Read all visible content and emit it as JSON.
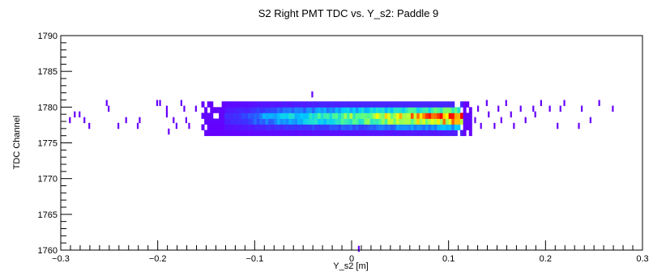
{
  "chart_data": {
    "type": "heatmap",
    "title": "S2 Right PMT TDC vs. Y_s2: Paddle 9",
    "xlabel": "Y_s2 [m]",
    "ylabel": "TDC Channel",
    "xlim": [
      -0.3,
      0.3
    ],
    "ylim": [
      1760,
      1790
    ],
    "x_ticks": [
      -0.3,
      -0.2,
      -0.1,
      0,
      0.1,
      0.2,
      0.3
    ],
    "x_tick_labels": [
      "−0.3",
      "−0.2",
      "−0.1",
      "0",
      "0.1",
      "0.2",
      "0.3"
    ],
    "y_ticks": [
      1760,
      1765,
      1770,
      1775,
      1780,
      1785,
      1790
    ],
    "y_tick_labels": [
      "1760",
      "1765",
      "1770",
      "1775",
      "1780",
      "1785",
      "1790"
    ],
    "bin_width_x": 0.003,
    "bin_width_y": 0.8,
    "dense_band": {
      "x_range": [
        -0.155,
        0.125
      ],
      "y_range": [
        1776.0,
        1781.0
      ],
      "peak_region_x": [
        -0.06,
        0.1
      ],
      "peak_region_y": [
        1777.0,
        1779.5
      ]
    },
    "sparse_points": [
      [
        -0.285,
        1779.0
      ],
      [
        -0.28,
        1779.0
      ],
      [
        -0.275,
        1778.2
      ],
      [
        -0.29,
        1778.2
      ],
      [
        -0.27,
        1777.4
      ],
      [
        -0.252,
        1780.6
      ],
      [
        -0.25,
        1779.8
      ],
      [
        -0.24,
        1777.4
      ],
      [
        -0.232,
        1778.2
      ],
      [
        -0.22,
        1777.4
      ],
      [
        -0.218,
        1778.2
      ],
      [
        -0.2,
        1780.6
      ],
      [
        -0.197,
        1780.6
      ],
      [
        -0.19,
        1779.8
      ],
      [
        -0.19,
        1779.0
      ],
      [
        -0.188,
        1776.6
      ],
      [
        -0.183,
        1778.2
      ],
      [
        -0.18,
        1777.4
      ],
      [
        -0.175,
        1780.6
      ],
      [
        -0.172,
        1779.8
      ],
      [
        -0.17,
        1778.2
      ],
      [
        -0.167,
        1777.4
      ],
      [
        -0.16,
        1779.8
      ],
      [
        -0.04,
        1781.8
      ],
      [
        0.128,
        1778.2
      ],
      [
        0.131,
        1779.8
      ],
      [
        0.134,
        1777.4
      ],
      [
        0.14,
        1780.6
      ],
      [
        0.142,
        1779.0
      ],
      [
        0.148,
        1777.4
      ],
      [
        0.152,
        1779.8
      ],
      [
        0.155,
        1778.2
      ],
      [
        0.16,
        1780.6
      ],
      [
        0.165,
        1779.0
      ],
      [
        0.168,
        1777.4
      ],
      [
        0.175,
        1779.8
      ],
      [
        0.18,
        1778.2
      ],
      [
        0.188,
        1779.8
      ],
      [
        0.19,
        1779.0
      ],
      [
        0.196,
        1780.6
      ],
      [
        0.205,
        1779.8
      ],
      [
        0.213,
        1777.4
      ],
      [
        0.216,
        1779.8
      ],
      [
        0.22,
        1780.6
      ],
      [
        0.235,
        1777.4
      ],
      [
        0.238,
        1779.8
      ],
      [
        0.247,
        1778.2
      ],
      [
        0.256,
        1780.6
      ],
      [
        0.27,
        1779.8
      ],
      [
        0.008,
        1760.2
      ]
    ],
    "color_scale": [
      "#6600ff",
      "#3340ff",
      "#00ccff",
      "#55ff88",
      "#ffff00",
      "#ff0000"
    ],
    "grid": false,
    "legend": "none"
  }
}
